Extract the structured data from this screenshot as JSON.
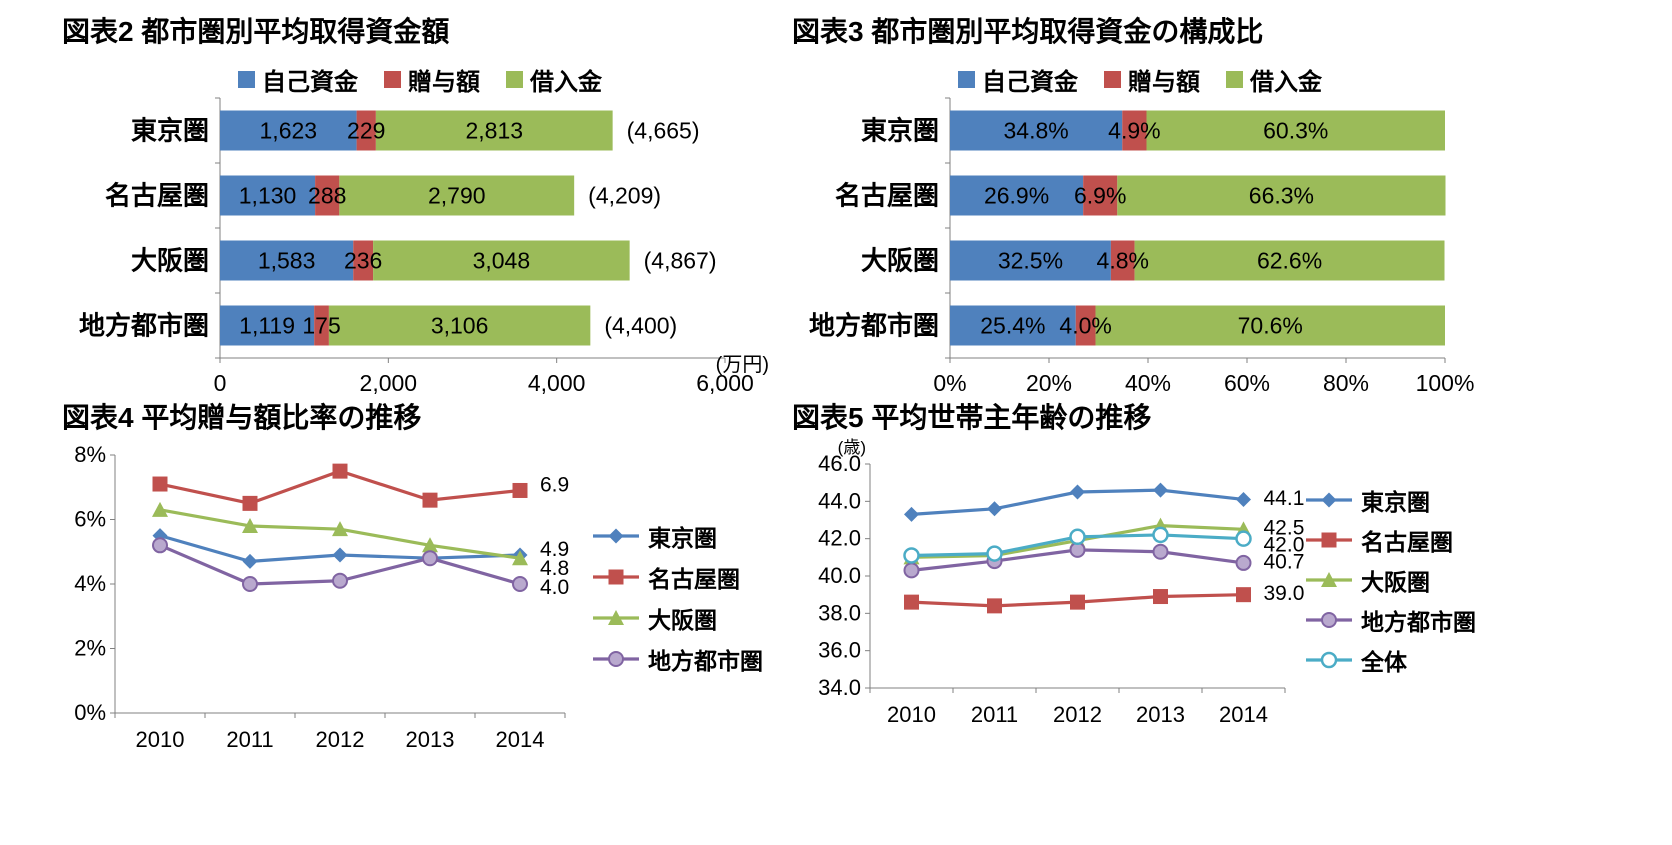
{
  "colors": {
    "blue": "#4F81BD",
    "red": "#C0504D",
    "green": "#9BBB59",
    "purple": "#8064A2",
    "purple_fill": "#B9A9CE",
    "cyan": "#4BACC6",
    "axis": "#808080",
    "text": "#000000"
  },
  "chart_data": [
    {
      "id": "fig2",
      "type": "bar",
      "orientation": "horizontal-stacked",
      "title": "図表2 都市圏別平均取得資金額",
      "unit_label": "(万円)",
      "legend_position": "top",
      "categories": [
        "東京圏",
        "名古屋圏",
        "大阪圏",
        "地方都市圏"
      ],
      "series": [
        {
          "name": "自己資金",
          "color_key": "blue",
          "values": [
            1623,
            1130,
            1583,
            1119
          ],
          "labels": [
            "1,623",
            "1,130",
            "1,583",
            "1,119"
          ]
        },
        {
          "name": "贈与額",
          "color_key": "red",
          "values": [
            229,
            288,
            236,
            175
          ],
          "labels": [
            "229",
            "288",
            "236",
            "175"
          ]
        },
        {
          "name": "借入金",
          "color_key": "green",
          "values": [
            2813,
            2790,
            3048,
            3106
          ],
          "labels": [
            "2,813",
            "2,790",
            "3,048",
            "3,106"
          ]
        }
      ],
      "totals": [
        "(4,665)",
        "(4,209)",
        "(4,867)",
        "(4,400)"
      ],
      "xlim": [
        0,
        6000
      ],
      "x_ticks": [
        {
          "v": 0,
          "label": "0"
        },
        {
          "v": 2000,
          "label": "2,000"
        },
        {
          "v": 4000,
          "label": "4,000"
        },
        {
          "v": 6000,
          "label": "6,000"
        }
      ],
      "grid": false
    },
    {
      "id": "fig3",
      "type": "bar",
      "orientation": "horizontal-stacked-100pct",
      "title": "図表3 都市圏別平均取得資金の構成比",
      "legend_position": "top",
      "categories": [
        "東京圏",
        "名古屋圏",
        "大阪圏",
        "地方都市圏"
      ],
      "series": [
        {
          "name": "自己資金",
          "color_key": "blue",
          "values": [
            34.8,
            26.9,
            32.5,
            25.4
          ],
          "labels": [
            "34.8%",
            "26.9%",
            "32.5%",
            "25.4%"
          ]
        },
        {
          "name": "贈与額",
          "color_key": "red",
          "values": [
            4.9,
            6.9,
            4.8,
            4.0
          ],
          "labels": [
            "4.9%",
            "6.9%",
            "4.8%",
            "4.0%"
          ]
        },
        {
          "name": "借入金",
          "color_key": "green",
          "values": [
            60.3,
            66.3,
            62.6,
            70.6
          ],
          "labels": [
            "60.3%",
            "66.3%",
            "62.6%",
            "70.6%"
          ]
        }
      ],
      "xlim": [
        0,
        100
      ],
      "x_ticks": [
        {
          "v": 0,
          "label": "0%"
        },
        {
          "v": 20,
          "label": "20%"
        },
        {
          "v": 40,
          "label": "40%"
        },
        {
          "v": 60,
          "label": "60%"
        },
        {
          "v": 80,
          "label": "80%"
        },
        {
          "v": 100,
          "label": "100%"
        }
      ],
      "grid": false
    },
    {
      "id": "fig4",
      "type": "line",
      "title": "図表4 平均贈与額比率の推移",
      "legend_position": "right",
      "x_categories": [
        "2010",
        "2011",
        "2012",
        "2013",
        "2014"
      ],
      "ylim": [
        0,
        8
      ],
      "y_ticks": [
        {
          "v": 0,
          "label": "0%"
        },
        {
          "v": 2,
          "label": "2%"
        },
        {
          "v": 4,
          "label": "4%"
        },
        {
          "v": 6,
          "label": "6%"
        },
        {
          "v": 8,
          "label": "8%"
        }
      ],
      "series": [
        {
          "name": "東京圏",
          "marker": "diamond",
          "color_key": "blue",
          "values": [
            5.5,
            4.7,
            4.9,
            4.8,
            4.9
          ],
          "end_label": "4.9"
        },
        {
          "name": "名古屋圏",
          "marker": "square",
          "color_key": "red",
          "values": [
            7.1,
            6.5,
            7.5,
            6.6,
            6.9
          ],
          "end_label": "6.9"
        },
        {
          "name": "大阪圏",
          "marker": "triangle",
          "color_key": "green",
          "values": [
            6.3,
            5.8,
            5.7,
            5.2,
            4.8
          ],
          "end_label": "4.8"
        },
        {
          "name": "地方都市圏",
          "marker": "circle-light",
          "color_key": "purple",
          "values": [
            5.2,
            4.0,
            4.1,
            4.8,
            4.0
          ],
          "end_label": "4.0"
        }
      ],
      "grid": false
    },
    {
      "id": "fig5",
      "type": "line",
      "title": "図表5 平均世帯主年齢の推移",
      "unit_label": "(歳)",
      "legend_position": "right",
      "x_categories": [
        "2010",
        "2011",
        "2012",
        "2013",
        "2014"
      ],
      "ylim": [
        34,
        46
      ],
      "y_ticks": [
        {
          "v": 34,
          "label": "34.0"
        },
        {
          "v": 36,
          "label": "36.0"
        },
        {
          "v": 38,
          "label": "38.0"
        },
        {
          "v": 40,
          "label": "40.0"
        },
        {
          "v": 42,
          "label": "42.0"
        },
        {
          "v": 44,
          "label": "44.0"
        },
        {
          "v": 46,
          "label": "46.0"
        }
      ],
      "series": [
        {
          "name": "東京圏",
          "marker": "diamond",
          "color_key": "blue",
          "values": [
            43.3,
            43.6,
            44.5,
            44.6,
            44.1
          ],
          "end_label": "44.1"
        },
        {
          "name": "名古屋圏",
          "marker": "square",
          "color_key": "red",
          "values": [
            38.6,
            38.4,
            38.6,
            38.9,
            39.0
          ],
          "end_label": "39.0"
        },
        {
          "name": "大阪圏",
          "marker": "triangle",
          "color_key": "green",
          "values": [
            41.0,
            41.1,
            41.9,
            42.7,
            42.5
          ],
          "end_label": "42.5"
        },
        {
          "name": "地方都市圏",
          "marker": "circle-light",
          "color_key": "purple",
          "values": [
            40.3,
            40.8,
            41.4,
            41.3,
            40.7
          ],
          "end_label": "40.7"
        },
        {
          "name": "全体",
          "marker": "circle-open",
          "color_key": "cyan",
          "values": [
            41.1,
            41.2,
            42.1,
            42.2,
            42.0
          ],
          "end_label": "42.0"
        }
      ],
      "grid": false
    }
  ]
}
